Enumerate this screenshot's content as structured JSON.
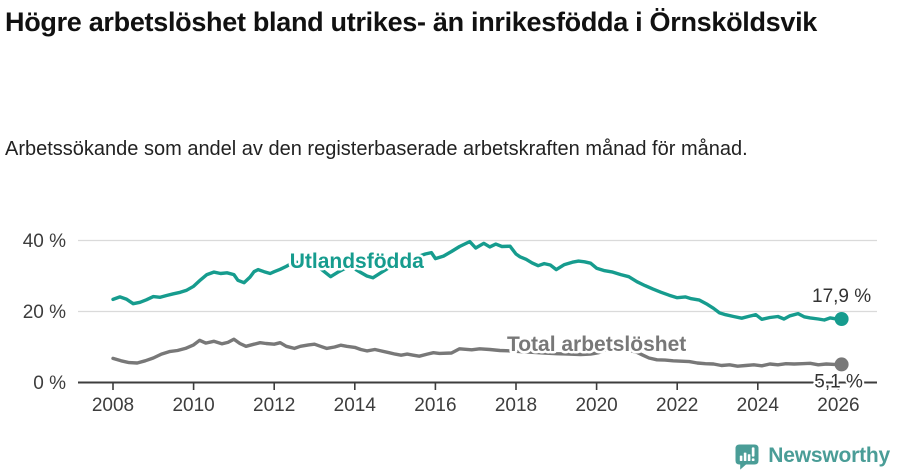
{
  "header": {
    "title": "Högre arbetslöshet bland utrikes- än inrikesfödda i Örnsköldsvik",
    "subtitle": "Arbetssökande som andel av den registerbaserade arbetskraften månad för månad."
  },
  "chart_data": {
    "type": "line",
    "title": "Högre arbetslöshet bland utrikes- än inrikesfödda i Örnsköldsvik",
    "subtitle": "Arbetssökande som andel av den registerbaserade arbetskraften månad för månad.",
    "grid": "horizontal-only",
    "x_axis": {
      "ticks": [
        2008,
        2010,
        2012,
        2014,
        2016,
        2018,
        2020,
        2022,
        2024,
        2026
      ],
      "range": [
        2007.2,
        2026.9
      ]
    },
    "y_axis": {
      "ticks": [
        {
          "value": 0,
          "label": "0 %"
        },
        {
          "value": 20,
          "label": "20 %"
        },
        {
          "value": 40,
          "label": "40 %"
        }
      ],
      "range": [
        0,
        44
      ]
    },
    "colors": {
      "foreign_born": "#169c8e",
      "total": "#787878",
      "axis": "#3d3d3d",
      "grid": "#dadada"
    },
    "series": [
      {
        "id": "utlandsfodda",
        "name": "Utlandsfödda",
        "color": "#169c8e",
        "end_label": "17,9 %",
        "end_value": 17.9,
        "label_anchor": {
          "x": 2014.05,
          "y": 32.3
        },
        "annotation_dy": -17,
        "annotation_dx": 0,
        "points": [
          [
            2008.0,
            23.4
          ],
          [
            2008.17,
            24.1
          ],
          [
            2008.33,
            23.5
          ],
          [
            2008.5,
            22.2
          ],
          [
            2008.67,
            22.6
          ],
          [
            2008.83,
            23.3
          ],
          [
            2009.0,
            24.2
          ],
          [
            2009.17,
            24.0
          ],
          [
            2009.33,
            24.5
          ],
          [
            2009.5,
            25.0
          ],
          [
            2009.67,
            25.4
          ],
          [
            2009.83,
            26.0
          ],
          [
            2010.0,
            27.1
          ],
          [
            2010.17,
            28.9
          ],
          [
            2010.33,
            30.4
          ],
          [
            2010.5,
            31.1
          ],
          [
            2010.67,
            30.7
          ],
          [
            2010.83,
            30.9
          ],
          [
            2011.0,
            30.4
          ],
          [
            2011.1,
            28.8
          ],
          [
            2011.25,
            28.1
          ],
          [
            2011.4,
            29.7
          ],
          [
            2011.5,
            31.2
          ],
          [
            2011.6,
            31.8
          ],
          [
            2011.75,
            31.2
          ],
          [
            2011.9,
            30.7
          ],
          [
            2012.0,
            31.2
          ],
          [
            2012.15,
            31.9
          ],
          [
            2012.3,
            32.7
          ],
          [
            2012.5,
            34.0
          ],
          [
            2012.65,
            33.7
          ],
          [
            2012.8,
            33.3
          ],
          [
            2013.0,
            33.6
          ],
          [
            2013.2,
            31.6
          ],
          [
            2013.4,
            29.8
          ],
          [
            2013.6,
            31.2
          ],
          [
            2013.8,
            32.4
          ],
          [
            2014.0,
            32.0
          ],
          [
            2014.15,
            31.0
          ],
          [
            2014.3,
            30.0
          ],
          [
            2014.45,
            29.5
          ],
          [
            2014.6,
            30.6
          ],
          [
            2014.8,
            32.0
          ],
          [
            2015.0,
            33.1
          ],
          [
            2015.2,
            34.1
          ],
          [
            2015.4,
            34.9
          ],
          [
            2015.6,
            35.6
          ],
          [
            2015.75,
            36.2
          ],
          [
            2015.9,
            36.6
          ],
          [
            2016.0,
            34.9
          ],
          [
            2016.2,
            35.6
          ],
          [
            2016.4,
            36.9
          ],
          [
            2016.6,
            38.3
          ],
          [
            2016.85,
            39.7
          ],
          [
            2017.0,
            37.9
          ],
          [
            2017.2,
            39.2
          ],
          [
            2017.35,
            38.2
          ],
          [
            2017.5,
            39.0
          ],
          [
            2017.65,
            38.3
          ],
          [
            2017.85,
            38.4
          ],
          [
            2018.0,
            36.2
          ],
          [
            2018.1,
            35.4
          ],
          [
            2018.25,
            34.7
          ],
          [
            2018.4,
            33.7
          ],
          [
            2018.55,
            32.9
          ],
          [
            2018.7,
            33.5
          ],
          [
            2018.85,
            33.1
          ],
          [
            2019.0,
            31.8
          ],
          [
            2019.2,
            33.2
          ],
          [
            2019.4,
            33.9
          ],
          [
            2019.55,
            34.2
          ],
          [
            2019.7,
            34.0
          ],
          [
            2019.85,
            33.6
          ],
          [
            2020.0,
            32.2
          ],
          [
            2020.2,
            31.5
          ],
          [
            2020.4,
            31.1
          ],
          [
            2020.6,
            30.4
          ],
          [
            2020.8,
            29.8
          ],
          [
            2021.0,
            28.4
          ],
          [
            2021.2,
            27.3
          ],
          [
            2021.4,
            26.3
          ],
          [
            2021.6,
            25.4
          ],
          [
            2021.8,
            24.6
          ],
          [
            2022.0,
            23.9
          ],
          [
            2022.2,
            24.1
          ],
          [
            2022.35,
            23.6
          ],
          [
            2022.55,
            23.2
          ],
          [
            2022.75,
            22.0
          ],
          [
            2022.9,
            20.9
          ],
          [
            2023.05,
            19.6
          ],
          [
            2023.2,
            19.1
          ],
          [
            2023.4,
            18.6
          ],
          [
            2023.6,
            18.1
          ],
          [
            2023.8,
            18.7
          ],
          [
            2023.95,
            19.1
          ],
          [
            2024.1,
            17.8
          ],
          [
            2024.3,
            18.3
          ],
          [
            2024.5,
            18.6
          ],
          [
            2024.65,
            17.9
          ],
          [
            2024.8,
            18.8
          ],
          [
            2025.0,
            19.4
          ],
          [
            2025.15,
            18.5
          ],
          [
            2025.3,
            18.2
          ],
          [
            2025.5,
            17.9
          ],
          [
            2025.65,
            17.6
          ],
          [
            2025.8,
            18.2
          ],
          [
            2026.0,
            17.8
          ],
          [
            2026.08,
            17.9
          ]
        ]
      },
      {
        "id": "total",
        "name": "Total arbetslöshet",
        "color": "#787878",
        "end_label": "5,1 %",
        "end_value": 5.1,
        "label_anchor": {
          "x": 2020.0,
          "y": 8.9
        },
        "annotation_dy": 23,
        "annotation_dx": -3,
        "points": [
          [
            2008.0,
            6.8
          ],
          [
            2008.2,
            6.1
          ],
          [
            2008.4,
            5.6
          ],
          [
            2008.6,
            5.5
          ],
          [
            2008.8,
            6.1
          ],
          [
            2009.0,
            6.9
          ],
          [
            2009.2,
            8.0
          ],
          [
            2009.4,
            8.7
          ],
          [
            2009.6,
            9.0
          ],
          [
            2009.8,
            9.6
          ],
          [
            2010.0,
            10.6
          ],
          [
            2010.15,
            11.9
          ],
          [
            2010.3,
            11.1
          ],
          [
            2010.5,
            11.6
          ],
          [
            2010.7,
            10.9
          ],
          [
            2010.85,
            11.3
          ],
          [
            2011.0,
            12.2
          ],
          [
            2011.15,
            11.0
          ],
          [
            2011.3,
            10.2
          ],
          [
            2011.5,
            10.8
          ],
          [
            2011.65,
            11.2
          ],
          [
            2011.8,
            11.0
          ],
          [
            2012.0,
            10.8
          ],
          [
            2012.15,
            11.2
          ],
          [
            2012.3,
            10.2
          ],
          [
            2012.5,
            9.6
          ],
          [
            2012.65,
            10.2
          ],
          [
            2012.85,
            10.6
          ],
          [
            2013.0,
            10.8
          ],
          [
            2013.15,
            10.2
          ],
          [
            2013.3,
            9.6
          ],
          [
            2013.5,
            10.0
          ],
          [
            2013.65,
            10.5
          ],
          [
            2013.8,
            10.2
          ],
          [
            2014.0,
            9.9
          ],
          [
            2014.15,
            9.3
          ],
          [
            2014.3,
            8.9
          ],
          [
            2014.5,
            9.3
          ],
          [
            2014.65,
            8.9
          ],
          [
            2014.85,
            8.4
          ],
          [
            2015.0,
            8.0
          ],
          [
            2015.15,
            7.7
          ],
          [
            2015.3,
            8.0
          ],
          [
            2015.45,
            7.7
          ],
          [
            2015.6,
            7.4
          ],
          [
            2015.8,
            8.0
          ],
          [
            2015.95,
            8.4
          ],
          [
            2016.1,
            8.2
          ],
          [
            2016.4,
            8.3
          ],
          [
            2016.6,
            9.5
          ],
          [
            2016.9,
            9.2
          ],
          [
            2017.1,
            9.5
          ],
          [
            2017.35,
            9.3
          ],
          [
            2017.6,
            9.0
          ],
          [
            2017.85,
            8.9
          ],
          [
            2018.1,
            8.7
          ],
          [
            2018.4,
            8.5
          ],
          [
            2018.7,
            8.3
          ],
          [
            2019.0,
            8.1
          ],
          [
            2019.3,
            8.0
          ],
          [
            2019.6,
            7.9
          ],
          [
            2019.85,
            8.0
          ],
          [
            2020.05,
            8.4
          ],
          [
            2020.3,
            9.6
          ],
          [
            2020.5,
            9.8
          ],
          [
            2020.75,
            9.3
          ],
          [
            2021.0,
            8.5
          ],
          [
            2021.15,
            7.7
          ],
          [
            2021.3,
            6.9
          ],
          [
            2021.5,
            6.4
          ],
          [
            2021.7,
            6.3
          ],
          [
            2021.9,
            6.1
          ],
          [
            2022.1,
            6.0
          ],
          [
            2022.3,
            5.9
          ],
          [
            2022.5,
            5.5
          ],
          [
            2022.7,
            5.3
          ],
          [
            2022.9,
            5.2
          ],
          [
            2023.1,
            4.8
          ],
          [
            2023.3,
            5.0
          ],
          [
            2023.5,
            4.6
          ],
          [
            2023.7,
            4.8
          ],
          [
            2023.9,
            5.0
          ],
          [
            2024.1,
            4.7
          ],
          [
            2024.3,
            5.2
          ],
          [
            2024.5,
            5.0
          ],
          [
            2024.7,
            5.3
          ],
          [
            2024.9,
            5.2
          ],
          [
            2025.1,
            5.3
          ],
          [
            2025.3,
            5.4
          ],
          [
            2025.5,
            5.0
          ],
          [
            2025.7,
            5.2
          ],
          [
            2025.9,
            5.1
          ],
          [
            2026.08,
            5.1
          ]
        ]
      }
    ],
    "legend_position": "inline-labels",
    "end_annotations": [
      "17,9 %",
      "5,1 %"
    ]
  },
  "footer": {
    "brand": "Newsworthy",
    "brand_color": "#4a9d97"
  }
}
